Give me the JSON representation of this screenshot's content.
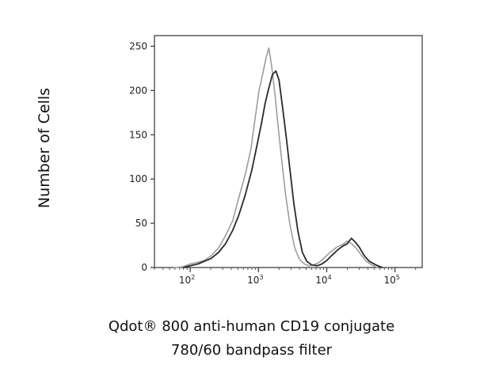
{
  "chart_data": {
    "type": "line",
    "title": "",
    "ylabel": "Number of Cells",
    "xlabel_line1": "Qdot® 800 anti-human CD19 conjugate",
    "xlabel_line2": "780/60 bandpass filter",
    "xscale": "log",
    "xlim": [
      30,
      250000
    ],
    "ylim": [
      0,
      262
    ],
    "grid": false,
    "legend": "none",
    "y_ticks": [
      "0",
      "50",
      "100",
      "150",
      "200",
      "250"
    ],
    "y_tick_values": [
      0,
      50,
      100,
      150,
      200,
      250
    ],
    "x_ticks": [
      {
        "base": "10",
        "exp": "2",
        "value": 100
      },
      {
        "base": "10",
        "exp": "3",
        "value": 1000
      },
      {
        "base": "10",
        "exp": "4",
        "value": 10000
      },
      {
        "base": "10",
        "exp": "5",
        "value": 100000
      }
    ],
    "series": [
      {
        "color": "#9a9f9c",
        "x": [
          60,
          80,
          100,
          130,
          160,
          200,
          260,
          330,
          420,
          520,
          640,
          780,
          900,
          1020,
          1150,
          1300,
          1420,
          1560,
          1750,
          1950,
          2200,
          2500,
          2900,
          3400,
          4000,
          4700,
          5500,
          6500,
          7800,
          9500,
          11500,
          14000,
          17000,
          20000,
          23000,
          27000,
          32000,
          38000,
          45000,
          55000
        ],
        "values": [
          0,
          1,
          4,
          6,
          8,
          13,
          22,
          36,
          53,
          80,
          105,
          135,
          170,
          200,
          218,
          238,
          248,
          228,
          195,
          158,
          120,
          82,
          48,
          22,
          9,
          4,
          2,
          3,
          6,
          12,
          18,
          23,
          26,
          30,
          27,
          22,
          14,
          7,
          3,
          0
        ]
      },
      {
        "color": "#2a2a2a",
        "x": [
          80,
          100,
          130,
          160,
          200,
          260,
          330,
          420,
          520,
          640,
          800,
          950,
          1100,
          1250,
          1420,
          1600,
          1800,
          2000,
          2250,
          2550,
          2900,
          3300,
          3800,
          4400,
          5100,
          6000,
          7200,
          8500,
          10000,
          12000,
          14500,
          17000,
          20000,
          23000,
          26000,
          30000,
          35000,
          42000,
          52000,
          65000
        ],
        "values": [
          0,
          2,
          4,
          7,
          10,
          17,
          27,
          42,
          60,
          82,
          110,
          138,
          162,
          185,
          203,
          218,
          222,
          212,
          182,
          148,
          110,
          72,
          40,
          17,
          7,
          3,
          2,
          4,
          8,
          14,
          20,
          24,
          27,
          33,
          29,
          23,
          14,
          7,
          3,
          0
        ]
      }
    ]
  }
}
